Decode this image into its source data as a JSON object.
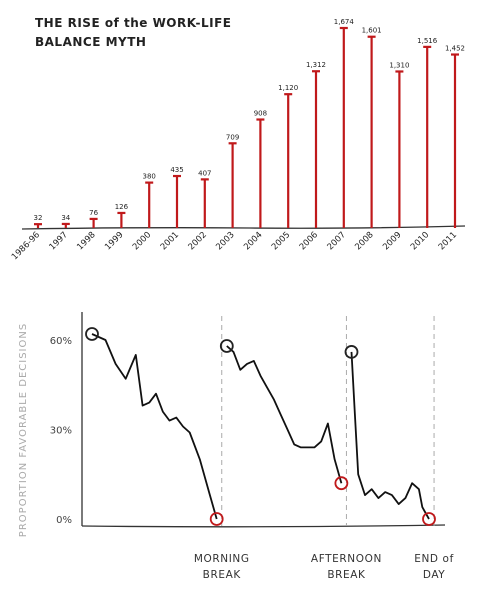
{
  "chart_data": [
    {
      "type": "bar",
      "title_line1": "THE RISE of the WORK-LIFE",
      "title_line2": "BALANCE MYTH",
      "categories": [
        "1986-96",
        "1997",
        "1998",
        "1999",
        "2000",
        "2001",
        "2002",
        "2003",
        "2004",
        "2005",
        "2006",
        "2007",
        "2008",
        "2009",
        "2010",
        "2011"
      ],
      "values": [
        32,
        34,
        76,
        126,
        380,
        435,
        407,
        709,
        908,
        1120,
        1312,
        1674,
        1601,
        1310,
        1516,
        1452
      ],
      "value_labels": [
        "32",
        "34",
        "76",
        "126",
        "380",
        "435",
        "407",
        "709",
        "908",
        "1,120",
        "1,312",
        "1,674",
        "1,601",
        "1,310",
        "1,516",
        "1,452"
      ],
      "ylim": [
        0,
        1674
      ],
      "bar_color": "#c0191b",
      "grid": false
    },
    {
      "type": "line",
      "ylabel": "PROPORTION FAVORABLE DECISIONS",
      "yticks": [
        {
          "value": 0,
          "label": "0%"
        },
        {
          "value": 30,
          "label": "30%"
        },
        {
          "value": 60,
          "label": "60%"
        }
      ],
      "ylim": [
        0,
        65
      ],
      "xlim": [
        0,
        100
      ],
      "series": [
        {
          "x": [
            0,
            4,
            7,
            10,
            13,
            15,
            17,
            19,
            21,
            23,
            25,
            27,
            29,
            32,
            35,
            37
          ],
          "y": [
            62,
            60,
            52,
            47,
            55,
            38,
            39,
            42,
            36,
            33,
            34,
            31,
            29,
            20,
            8,
            0
          ]
        },
        {
          "x": [
            40,
            42,
            44,
            46,
            48,
            50,
            52,
            54,
            56,
            58,
            60,
            62,
            64,
            66,
            68,
            70,
            72,
            74
          ],
          "y": [
            58,
            56,
            50,
            52,
            53,
            48,
            44,
            40,
            35,
            30,
            25,
            24,
            24,
            24,
            26,
            32,
            20,
            12
          ]
        },
        {
          "x": [
            77,
            78,
            79,
            81,
            83,
            85,
            87,
            89,
            91,
            93,
            95,
            97,
            98,
            99,
            100
          ],
          "y": [
            56,
            35,
            15,
            8,
            10,
            7,
            9,
            8,
            5,
            7,
            12,
            10,
            4,
            2,
            0
          ]
        }
      ],
      "markers": [
        {
          "x": 0,
          "y": 62,
          "color": "#222222"
        },
        {
          "x": 37,
          "y": 0,
          "color": "#c0191b"
        },
        {
          "x": 40,
          "y": 58,
          "color": "#222222"
        },
        {
          "x": 74,
          "y": 12,
          "color": "#c0191b"
        },
        {
          "x": 77,
          "y": 56,
          "color": "#222222"
        },
        {
          "x": 100,
          "y": 0,
          "color": "#c0191b"
        }
      ],
      "breaks": [
        {
          "x": 38.5,
          "label_line1": "MORNING",
          "label_line2": "BREAK"
        },
        {
          "x": 75.5,
          "label_line1": "AFTERNOON",
          "label_line2": "BREAK"
        },
        {
          "x": 101.5,
          "label_line1": "END of",
          "label_line2": "DAY"
        }
      ],
      "line_color": "#111111",
      "grid": false
    }
  ]
}
